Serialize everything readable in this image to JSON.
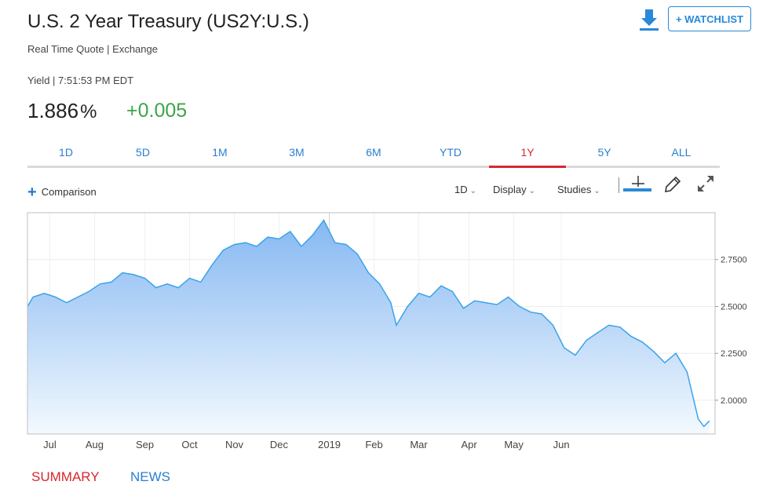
{
  "header": {
    "title": "U.S. 2 Year Treasury (US2Y:U.S.)",
    "subtitle": "Real Time Quote | Exchange",
    "yield_label": "Yield | 7:51:53 PM EDT",
    "price": "1.886",
    "price_unit": "%",
    "change": "+0.005",
    "watchlist_label": "+ WATCHLIST",
    "change_color": "#3aa646"
  },
  "tabs": [
    {
      "label": "1D",
      "active": false
    },
    {
      "label": "5D",
      "active": false
    },
    {
      "label": "1M",
      "active": false
    },
    {
      "label": "3M",
      "active": false
    },
    {
      "label": "6M",
      "active": false
    },
    {
      "label": "YTD",
      "active": false
    },
    {
      "label": "1Y",
      "active": true
    },
    {
      "label": "5Y",
      "active": false
    },
    {
      "label": "ALL",
      "active": false
    }
  ],
  "toolbar": {
    "comparison_label": "Comparison",
    "interval_label": "1D",
    "display_label": "Display",
    "studies_label": "Studies"
  },
  "bottom_tabs": {
    "summary": "SUMMARY",
    "news": "NEWS"
  },
  "colors": {
    "accent_blue": "#2a88d8",
    "active_red": "#d7282f",
    "line_blue": "#3aa3ea"
  },
  "chart_data": {
    "type": "area",
    "x_tick_labels": [
      "Jul",
      "Aug",
      "Sep",
      "Oct",
      "Nov",
      "Dec",
      "2019",
      "Feb",
      "Mar",
      "Apr",
      "May",
      "Jun"
    ],
    "y_tick_labels": [
      "2.7500",
      "2.5000",
      "2.2500",
      "2.0000"
    ],
    "ylim": [
      1.82,
      3.0
    ],
    "grid": true,
    "series": [
      {
        "values": [
          [
            2018.46,
            2.5
          ],
          [
            2018.47,
            2.55
          ],
          [
            2018.49,
            2.57
          ],
          [
            2018.51,
            2.55
          ],
          [
            2018.53,
            2.52
          ],
          [
            2018.55,
            2.55
          ],
          [
            2018.57,
            2.58
          ],
          [
            2018.59,
            2.62
          ],
          [
            2018.61,
            2.63
          ],
          [
            2018.63,
            2.68
          ],
          [
            2018.65,
            2.67
          ],
          [
            2018.67,
            2.65
          ],
          [
            2018.69,
            2.6
          ],
          [
            2018.71,
            2.62
          ],
          [
            2018.73,
            2.6
          ],
          [
            2018.75,
            2.65
          ],
          [
            2018.77,
            2.63
          ],
          [
            2018.79,
            2.72
          ],
          [
            2018.81,
            2.8
          ],
          [
            2018.83,
            2.83
          ],
          [
            2018.85,
            2.84
          ],
          [
            2018.87,
            2.82
          ],
          [
            2018.89,
            2.87
          ],
          [
            2018.91,
            2.86
          ],
          [
            2018.93,
            2.9
          ],
          [
            2018.95,
            2.82
          ],
          [
            2018.97,
            2.88
          ],
          [
            2018.99,
            2.96
          ],
          [
            2019.01,
            2.84
          ],
          [
            2019.03,
            2.83
          ],
          [
            2019.05,
            2.78
          ],
          [
            2019.07,
            2.68
          ],
          [
            2019.09,
            2.62
          ],
          [
            2019.11,
            2.52
          ],
          [
            2019.12,
            2.4
          ],
          [
            2019.14,
            2.5
          ],
          [
            2019.16,
            2.57
          ],
          [
            2019.18,
            2.55
          ],
          [
            2019.2,
            2.61
          ],
          [
            2019.22,
            2.58
          ],
          [
            2019.24,
            2.49
          ],
          [
            2019.26,
            2.53
          ],
          [
            2019.28,
            2.52
          ],
          [
            2019.3,
            2.51
          ],
          [
            2019.32,
            2.55
          ],
          [
            2019.34,
            2.5
          ],
          [
            2019.36,
            2.47
          ],
          [
            2019.38,
            2.46
          ],
          [
            2019.4,
            2.4
          ],
          [
            2019.42,
            2.28
          ],
          [
            2019.44,
            2.24
          ],
          [
            2019.46,
            2.32
          ],
          [
            2019.48,
            2.36
          ],
          [
            2019.5,
            2.4
          ],
          [
            2019.52,
            2.39
          ],
          [
            2019.54,
            2.34
          ],
          [
            2019.56,
            2.31
          ],
          [
            2019.58,
            2.26
          ],
          [
            2019.6,
            2.2
          ],
          [
            2019.62,
            2.25
          ],
          [
            2019.64,
            2.15
          ],
          [
            2019.66,
            1.9
          ],
          [
            2019.67,
            1.86
          ],
          [
            2019.68,
            1.89
          ]
        ]
      }
    ]
  }
}
